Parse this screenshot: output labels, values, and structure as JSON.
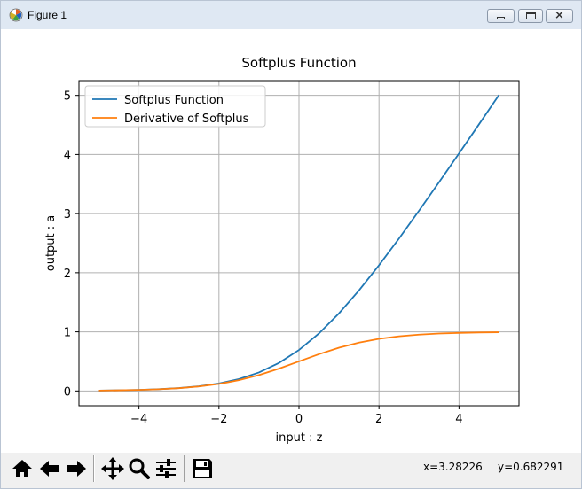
{
  "window": {
    "title": "Figure 1",
    "icons": {
      "app": "matplotlib-icon",
      "minimize": "minimize-icon",
      "maximize": "maximize-icon",
      "close": "close-icon"
    }
  },
  "toolbar": {
    "buttons": [
      {
        "name": "home-button",
        "icon": "home-icon"
      },
      {
        "name": "back-button",
        "icon": "arrow-left-icon"
      },
      {
        "name": "forward-button",
        "icon": "arrow-right-icon"
      },
      {
        "name": "pan-button",
        "icon": "move-icon"
      },
      {
        "name": "zoom-button",
        "icon": "magnifier-icon"
      },
      {
        "name": "subplots-button",
        "icon": "sliders-icon"
      },
      {
        "name": "save-button",
        "icon": "floppy-disk-icon"
      }
    ],
    "x_readout": "x=3.28226",
    "y_readout": "y=0.682291"
  },
  "chart_data": {
    "type": "line",
    "title": "Softplus Function",
    "xlabel": "input : z",
    "ylabel": "output : a",
    "xlim": [
      -5.5,
      5.5
    ],
    "ylim": [
      -0.25,
      5.25
    ],
    "xticks": [
      -4,
      -2,
      0,
      2,
      4
    ],
    "xtick_labels": [
      "−4",
      "−2",
      "0",
      "2",
      "4"
    ],
    "yticks": [
      0,
      1,
      2,
      3,
      4,
      5
    ],
    "ytick_labels": [
      "0",
      "1",
      "2",
      "3",
      "4",
      "5"
    ],
    "grid": true,
    "legend_position": "upper-left",
    "x": [
      -5,
      -4.5,
      -4,
      -3.5,
      -3,
      -2.5,
      -2,
      -1.5,
      -1,
      -0.5,
      0,
      0.5,
      1,
      1.5,
      2,
      2.5,
      3,
      3.5,
      4,
      4.5,
      5
    ],
    "series": [
      {
        "name": "Softplus Function",
        "color": "#1f77b4",
        "values": [
          0.0067,
          0.011,
          0.018,
          0.03,
          0.049,
          0.079,
          0.127,
          0.201,
          0.313,
          0.474,
          0.693,
          0.974,
          1.313,
          1.701,
          2.127,
          2.579,
          3.049,
          3.53,
          4.018,
          4.511,
          5.007
        ]
      },
      {
        "name": "Derivative of Softplus",
        "color": "#ff7f0e",
        "values": [
          0.0067,
          0.011,
          0.018,
          0.029,
          0.047,
          0.076,
          0.119,
          0.182,
          0.269,
          0.378,
          0.5,
          0.622,
          0.731,
          0.818,
          0.881,
          0.924,
          0.953,
          0.971,
          0.982,
          0.989,
          0.993
        ]
      }
    ]
  }
}
